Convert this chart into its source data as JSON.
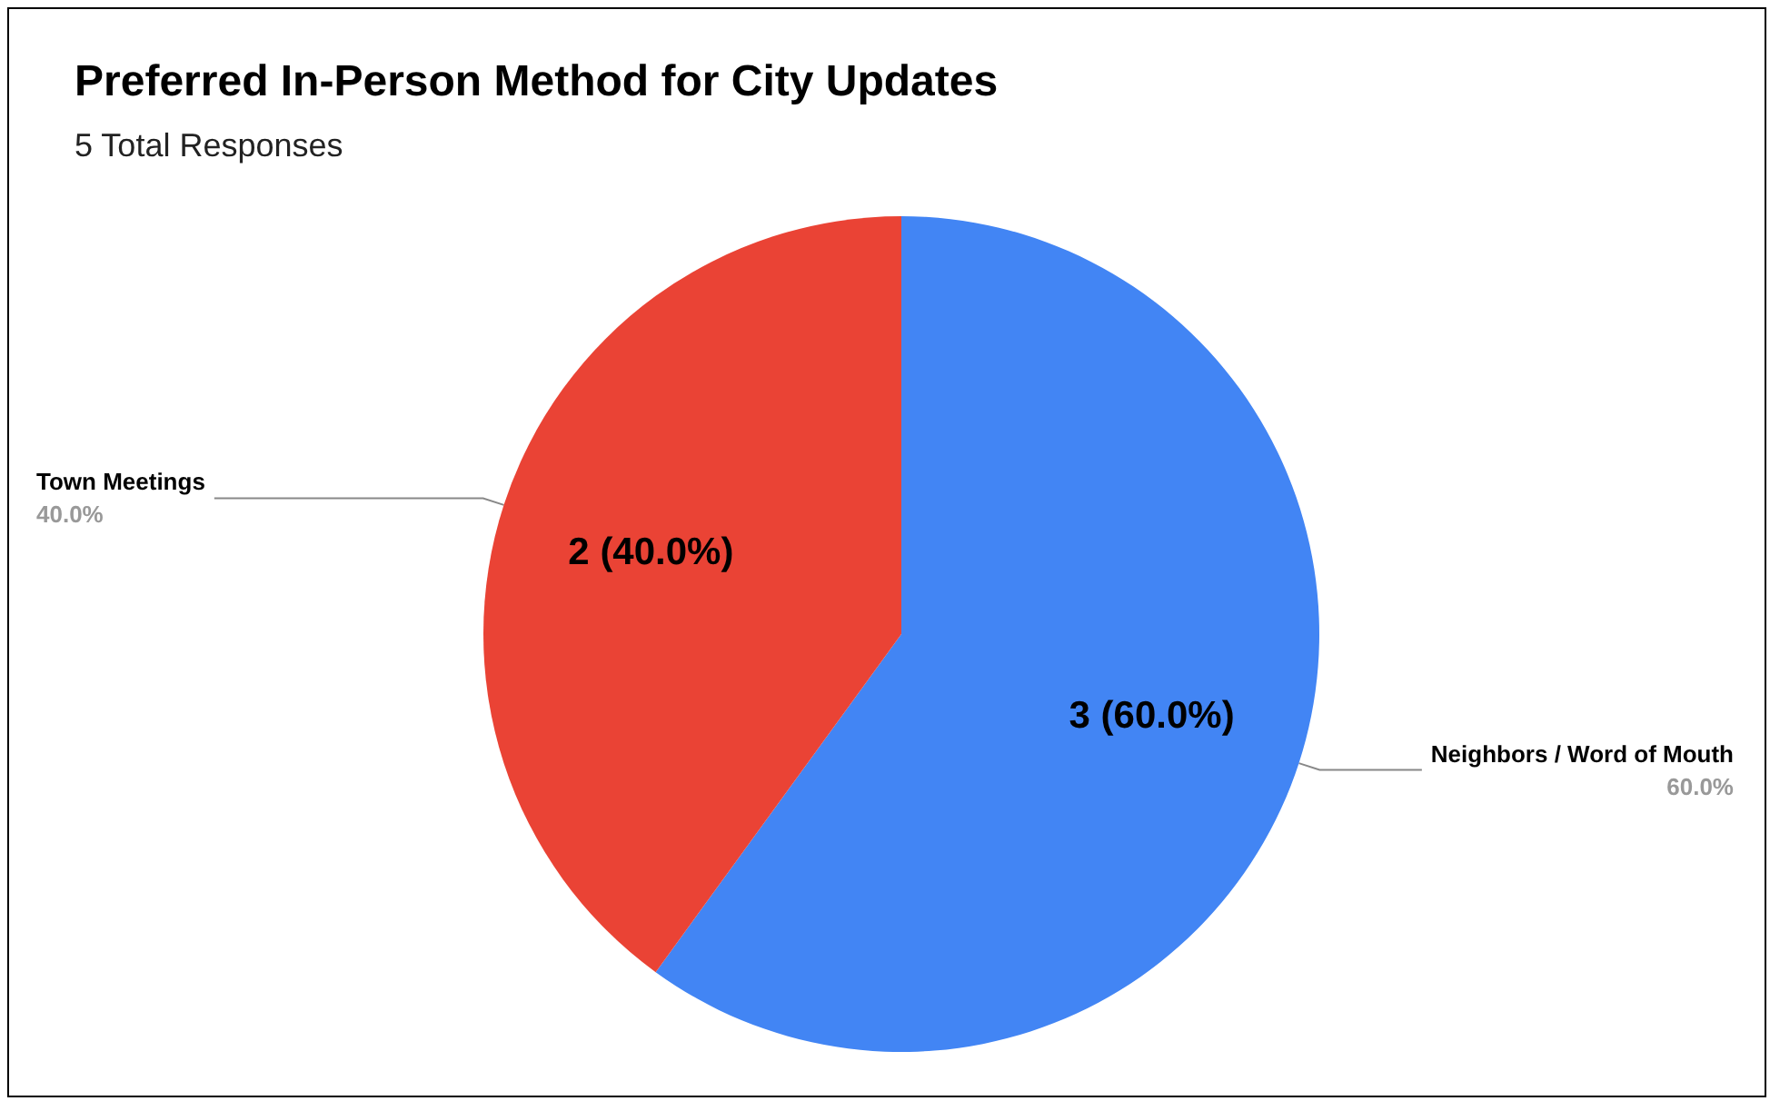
{
  "chart_data": {
    "type": "pie",
    "title": "Preferred In-Person Method for City Updates",
    "subtitle": "5 Total Responses",
    "categories": [
      "Neighbors / Word of Mouth",
      "Town Meetings"
    ],
    "values": [
      3,
      2
    ],
    "colors": [
      "#4285f4",
      "#ea4335"
    ],
    "value_labels": [
      "3 (60.0%)",
      "2 (40.0%)"
    ],
    "annotations": [
      {
        "text": "60.0%",
        "x": "Neighbors / Word of Mouth"
      },
      {
        "text": "40.0%",
        "x": "Town Meetings"
      }
    ],
    "legend": false
  }
}
